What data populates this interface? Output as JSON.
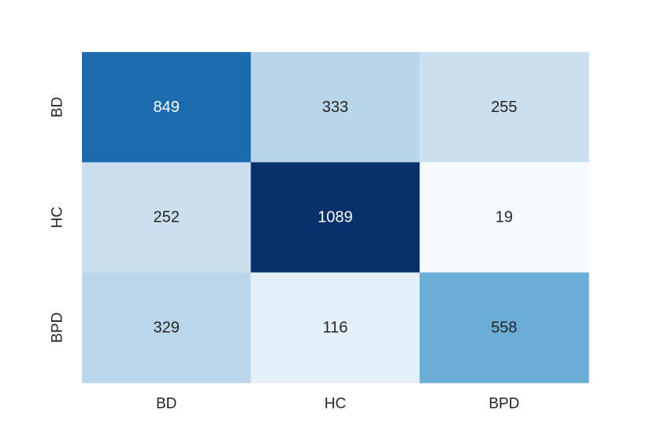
{
  "chart_data": {
    "type": "heatmap",
    "title": "",
    "xlabel": "",
    "ylabel": "",
    "x_categories": [
      "BD",
      "HC",
      "BPD"
    ],
    "y_categories": [
      "BD",
      "HC",
      "BPD"
    ],
    "values": [
      [
        849,
        333,
        255
      ],
      [
        252,
        1089,
        19
      ],
      [
        329,
        116,
        558
      ]
    ],
    "colormap": "Blues",
    "color_range": [
      19,
      1089
    ],
    "colorbar": false,
    "grid": false
  }
}
